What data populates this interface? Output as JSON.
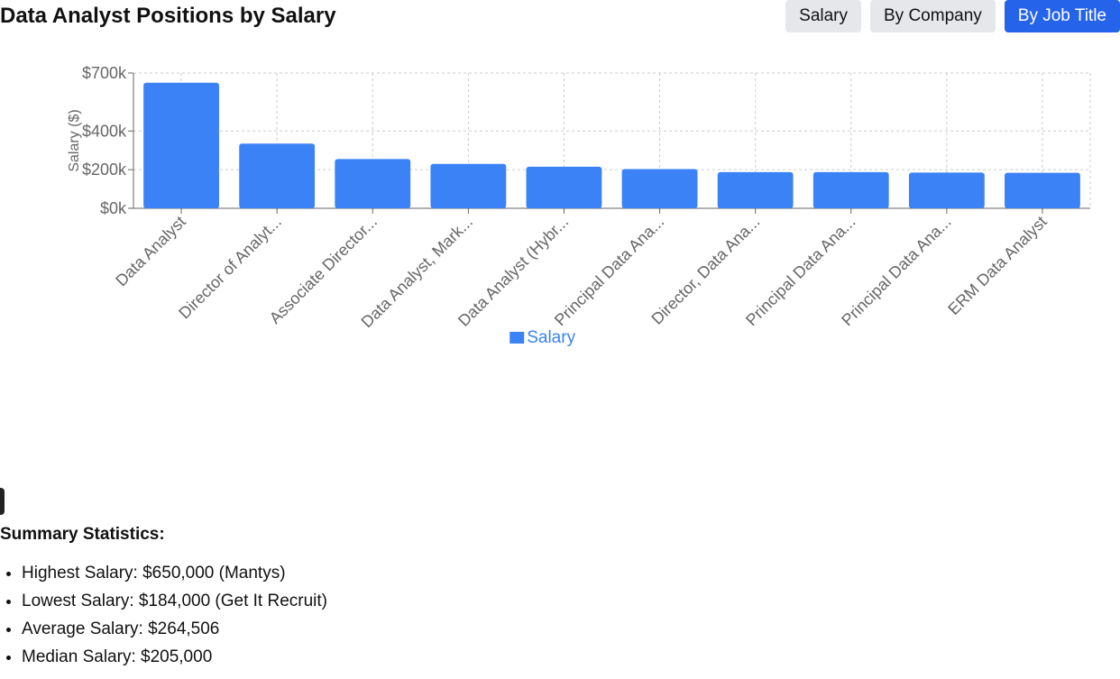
{
  "page": {
    "title": "Data Analyst Positions by Salary"
  },
  "toolbar": {
    "buttons": [
      {
        "label": "Salary",
        "active": false
      },
      {
        "label": "By Company",
        "active": false
      },
      {
        "label": "By Job Title",
        "active": true
      }
    ]
  },
  "summary": {
    "title": "Summary Statistics:",
    "items": [
      "Highest Salary: $650,000 (Mantys)",
      "Lowest Salary: $184,000 (Get It Recruit)",
      "Average Salary: $264,506",
      "Median Salary: $205,000"
    ]
  },
  "chart_data": {
    "type": "bar",
    "title": "",
    "xlabel": "",
    "ylabel": "Salary ($)",
    "categories": [
      "Data Analyst",
      "Director of Analyt...",
      "Associate Director...",
      "Data Analyst, Mark...",
      "Data Analyst (Hybr...",
      "Principal Data Ana...",
      "Director, Data Ana...",
      "Principal Data Ana...",
      "Principal Data Ana...",
      "ERM Data Analyst"
    ],
    "series": [
      {
        "name": "Salary",
        "color": "#3b82f6",
        "values": [
          650000,
          335000,
          255000,
          230000,
          215000,
          203000,
          187000,
          187000,
          185000,
          184000
        ]
      }
    ],
    "ylim": [
      0,
      700000
    ],
    "yticks": [
      0,
      200000,
      400000,
      700000
    ],
    "ytick_labels": [
      "$0k",
      "$200k",
      "$400k",
      "$700k"
    ],
    "grid": true,
    "legend": "bottom-center",
    "colors": {
      "bar": "#3b82f6",
      "grid": "#cccccc",
      "axis": "#666666",
      "tick_text": "#666666",
      "legend_text": "#3b82f6"
    }
  }
}
